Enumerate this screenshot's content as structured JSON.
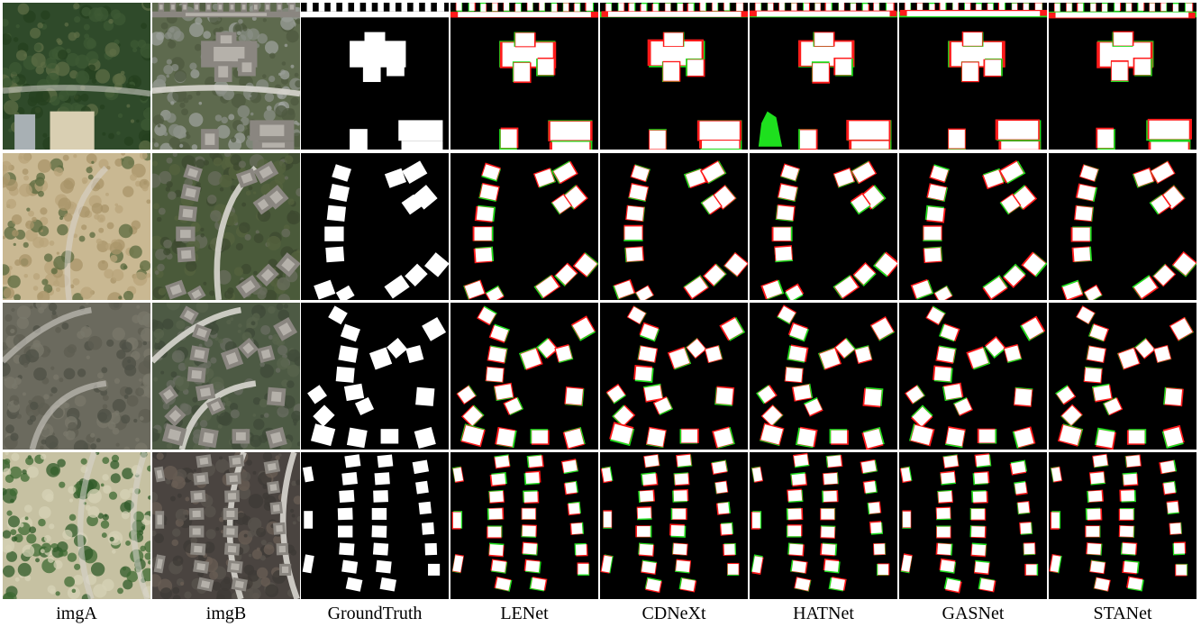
{
  "figure": {
    "columns": [
      {
        "label": "imgA",
        "kind": "photo-a"
      },
      {
        "label": "imgB",
        "kind": "photo-b"
      },
      {
        "label": "GroundTruth",
        "kind": "mask"
      },
      {
        "label": "LENet",
        "kind": "pred"
      },
      {
        "label": "CDNeXt",
        "kind": "pred"
      },
      {
        "label": "HATNet",
        "kind": "pred"
      },
      {
        "label": "GASNet",
        "kind": "pred"
      },
      {
        "label": "STANet",
        "kind": "pred"
      }
    ],
    "rows": [
      {
        "scene": "large-building"
      },
      {
        "scene": "cul-de-sac"
      },
      {
        "scene": "curved-street"
      },
      {
        "scene": "parallel-rows"
      }
    ],
    "colors": {
      "mask_background": "#000000",
      "true_positive": "#ffffff",
      "false_positive": "#ff1a1a",
      "false_negative": "#1ee01e",
      "separator": "#ffffff"
    }
  }
}
